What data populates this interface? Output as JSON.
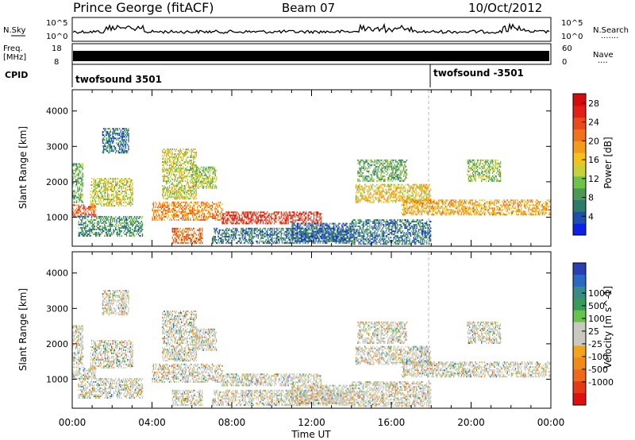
{
  "header": {
    "station": "Prince George (fitACF)",
    "beam": "Beam 07",
    "date": "10/Oct/2012"
  },
  "top_panels": {
    "nsky_label": "N.Sky",
    "nsearch_label": "N.Search",
    "nsearch_dots": "·······",
    "freq_label_line1": "Freq.",
    "freq_label_line2": "[MHz]",
    "nave_label": "Nave",
    "nave_dots": "····",
    "cpid_label": "CPID",
    "noise_ticks": [
      "10^5",
      "10^0"
    ],
    "noise_ticks_right": [
      "10^5",
      "10^0"
    ],
    "freq_ticks": [
      "18",
      "8"
    ],
    "nave_ticks": [
      "60",
      "0"
    ],
    "cpid_left": "twofsound 3501",
    "cpid_right": "twofsound -3501"
  },
  "chart_data": [
    {
      "type": "heatmap",
      "title": "",
      "xlabel": "Time UT",
      "ylabel": "Slant Range [km]",
      "x_ticks": [
        "00:00",
        "04:00",
        "08:00",
        "12:00",
        "16:00",
        "20:00",
        "00:00"
      ],
      "y_ticks": [
        "1000",
        "2000",
        "3000",
        "4000"
      ],
      "xlim_hours": [
        0,
        24
      ],
      "ylim_km": [
        180,
        4600
      ],
      "colorbar": {
        "label": "Power [dB]",
        "ticks": [
          "4",
          "8",
          "12",
          "16",
          "20",
          "24",
          "28"
        ],
        "range": [
          0,
          30
        ],
        "colors": [
          "#0b22e6",
          "#1e4fb0",
          "#2d7a6a",
          "#4a9a56",
          "#6dc24a",
          "#c8d13a",
          "#f3c21d",
          "#f39c1c",
          "#f0731b",
          "#ea4a1a",
          "#e41f18",
          "#d60c0c"
        ]
      }
    },
    {
      "type": "heatmap",
      "title": "",
      "xlabel": "Time UT",
      "ylabel": "Slant Range [km]",
      "x_ticks": [
        "00:00",
        "04:00",
        "08:00",
        "12:00",
        "16:00",
        "20:00",
        "00:00"
      ],
      "y_ticks": [
        "1000",
        "2000",
        "3000",
        "4000"
      ],
      "xlim_hours": [
        0,
        24
      ],
      "ylim_km": [
        180,
        4600
      ],
      "colorbar": {
        "label": "Velocity [m s^-1]",
        "ticks": [
          "1000",
          "500",
          "100",
          "25",
          "-25",
          "-100",
          "-500",
          "-1000"
        ],
        "colors": [
          "#2a3fb4",
          "#2d69c2",
          "#3a8a8a",
          "#3a9a5a",
          "#67c44a",
          "#c9c9c0",
          "#c9c9c0",
          "#f2a51c",
          "#f08a1a",
          "#ef6a18",
          "#e53a16",
          "#de1010"
        ]
      }
    }
  ],
  "scan_regions": [
    {
      "t0": 0.0,
      "t1": 1.2,
      "r0": 1000,
      "r1": 1350,
      "p": 24
    },
    {
      "t0": 0.0,
      "t1": 0.5,
      "r0": 1400,
      "r1": 2500,
      "p": 10
    },
    {
      "t0": 0.9,
      "t1": 3.0,
      "r0": 1300,
      "r1": 2100,
      "p": 14
    },
    {
      "t0": 0.3,
      "t1": 3.5,
      "r0": 450,
      "r1": 1000,
      "p": 8
    },
    {
      "t0": 1.5,
      "t1": 2.8,
      "r0": 2800,
      "r1": 3500,
      "p": 6
    },
    {
      "t0": 4.0,
      "t1": 7.5,
      "r0": 900,
      "r1": 1400,
      "p": 20
    },
    {
      "t0": 4.5,
      "t1": 6.2,
      "r0": 1500,
      "r1": 2900,
      "p": 14
    },
    {
      "t0": 5.0,
      "t1": 6.5,
      "r0": 250,
      "r1": 700,
      "p": 22
    },
    {
      "t0": 6.0,
      "t1": 7.2,
      "r0": 1800,
      "r1": 2400,
      "p": 12
    },
    {
      "t0": 7.5,
      "t1": 12.5,
      "r0": 800,
      "r1": 1150,
      "p": 26
    },
    {
      "t0": 7.0,
      "t1": 14.0,
      "r0": 250,
      "r1": 700,
      "p": 6
    },
    {
      "t0": 11.0,
      "t1": 14.0,
      "r0": 300,
      "r1": 800,
      "p": 5
    },
    {
      "t0": 14.2,
      "t1": 18.0,
      "r0": 1400,
      "r1": 1900,
      "p": 16
    },
    {
      "t0": 14.3,
      "t1": 16.8,
      "r0": 2000,
      "r1": 2600,
      "p": 10
    },
    {
      "t0": 16.5,
      "t1": 24.0,
      "r0": 1050,
      "r1": 1500,
      "p": 18
    },
    {
      "t0": 19.8,
      "t1": 21.5,
      "r0": 2000,
      "r1": 2600,
      "p": 12
    },
    {
      "t0": 14.0,
      "t1": 18.0,
      "r0": 220,
      "r1": 900,
      "p": 6
    }
  ]
}
